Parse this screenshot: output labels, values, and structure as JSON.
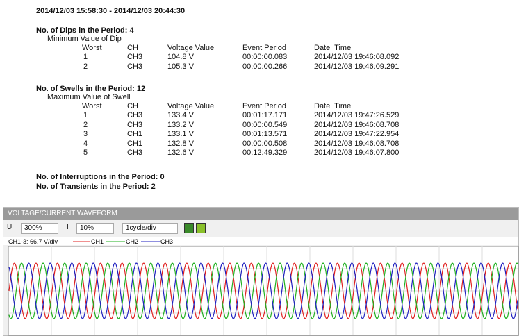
{
  "report": {
    "period": "2014/12/03 15:58:30 - 2014/12/03 20:44:30",
    "dips": {
      "heading": "No. of Dips in the Period: 4",
      "subheading": "Minimum Value of Dip",
      "columns": [
        "Worst",
        "CH",
        "Voltage Value",
        "Event Period",
        "Date  Time"
      ],
      "rows": [
        [
          "1",
          "CH3",
          "104.8 V",
          "00:00:00.083",
          "2014/12/03 19:46:08.092"
        ],
        [
          "2",
          "CH3",
          "105.3 V",
          "00:00:00.266",
          "2014/12/03 19:46:09.291"
        ]
      ]
    },
    "swells": {
      "heading": "No. of Swells in the Period: 12",
      "subheading": "Maximum Value of Swell",
      "columns": [
        "Worst",
        "CH",
        "Voltage Value",
        "Event Period",
        "Date  Time"
      ],
      "rows": [
        [
          "1",
          "CH3",
          "133.4 V",
          "00:01:17.171",
          "2014/12/03 19:47:26.529"
        ],
        [
          "2",
          "CH3",
          "133.2 V",
          "00:00:00.549",
          "2014/12/03 19:46:08.708"
        ],
        [
          "3",
          "CH1",
          "133.1 V",
          "00:01:13.571",
          "2014/12/03 19:47:22.954"
        ],
        [
          "4",
          "CH1",
          "132.8 V",
          "00:00:00.508",
          "2014/12/03 19:46:08.708"
        ],
        [
          "5",
          "CH3",
          "132.6 V",
          "00:12:49.329",
          "2014/12/03 19:46:07.800"
        ]
      ]
    },
    "interruptions": "No. of Interruptions in the Period: 0",
    "transients": "No. of Transients in the Period: 2"
  },
  "waveform": {
    "title": "VOLTAGE/CURRENT WAVEFORM",
    "u_label": "U",
    "u_zoom": "300%",
    "i_label": "I",
    "i_zoom": "10%",
    "time_scale": "1cycle/div",
    "scale": "CH1-3: 66.7 V/div",
    "legend": [
      "CH1",
      "CH2",
      "CH3"
    ]
  }
}
